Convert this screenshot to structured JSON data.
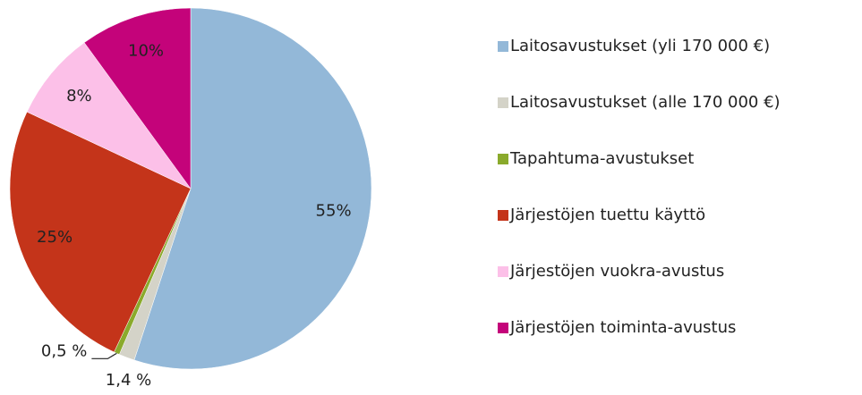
{
  "chart_data": {
    "type": "pie",
    "categories": [
      "Laitosavustukset (yli 170 000 €)",
      "Laitosavustukset (alle 170 000 €)",
      "Tapahtuma-avustukset",
      "Järjestöjen tuettu käyttö",
      "Järjestöjen vuokra-avustus",
      "Järjestöjen toiminta-avustus"
    ],
    "values": [
      55,
      1.4,
      0.5,
      25,
      8,
      10
    ],
    "value_labels": [
      "55%",
      "1,4 %",
      "0,5 %",
      "25%",
      "8%",
      "10%"
    ],
    "colors": [
      "#93b8d8",
      "#d4d3c8",
      "#8aaa2c",
      "#c4341a",
      "#fcc0e8",
      "#c4037a"
    ],
    "legend": "right"
  }
}
